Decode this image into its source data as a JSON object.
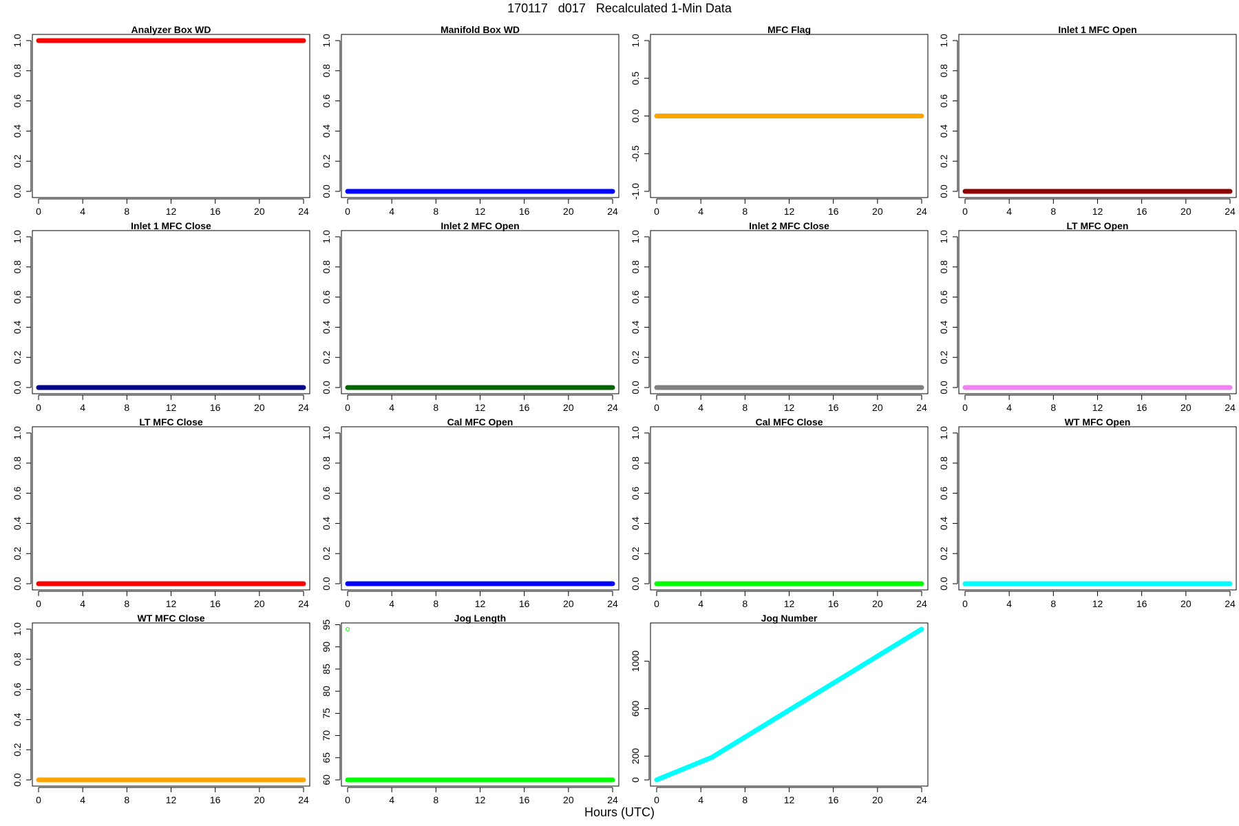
{
  "figure": {
    "title": "170117   d017   Recalculated 1-Min Data",
    "xlabel": "Hours (UTC)"
  },
  "chart_data": [
    {
      "type": "line",
      "title": "Analyzer Box WD",
      "color": "#ff0000",
      "xlim": [
        0,
        24
      ],
      "ylim": [
        0,
        1
      ],
      "x_ticks": [
        0,
        4,
        8,
        12,
        16,
        20,
        24
      ],
      "y_ticks": [
        "0.0",
        "0.2",
        "0.4",
        "0.6",
        "0.8",
        "1.0"
      ],
      "series": [
        {
          "x": [
            0,
            24
          ],
          "y": [
            1,
            1
          ]
        }
      ]
    },
    {
      "type": "line",
      "title": "Manifold Box WD",
      "color": "#0000ff",
      "xlim": [
        0,
        24
      ],
      "ylim": [
        0,
        1
      ],
      "x_ticks": [
        0,
        4,
        8,
        12,
        16,
        20,
        24
      ],
      "y_ticks": [
        "0.0",
        "0.2",
        "0.4",
        "0.6",
        "0.8",
        "1.0"
      ],
      "series": [
        {
          "x": [
            0,
            24
          ],
          "y": [
            0,
            0
          ]
        }
      ]
    },
    {
      "type": "line",
      "title": "MFC Flag",
      "color": "#ffa500",
      "xlim": [
        0,
        24
      ],
      "ylim": [
        -1,
        1
      ],
      "x_ticks": [
        0,
        4,
        8,
        12,
        16,
        20,
        24
      ],
      "y_ticks": [
        "-1.0",
        "-0.5",
        "0.0",
        "0.5",
        "1.0"
      ],
      "series": [
        {
          "x": [
            0,
            24
          ],
          "y": [
            0,
            0
          ]
        }
      ]
    },
    {
      "type": "line",
      "title": "Inlet 1 MFC Open",
      "color": "#8b0000",
      "xlim": [
        0,
        24
      ],
      "ylim": [
        0,
        1
      ],
      "x_ticks": [
        0,
        4,
        8,
        12,
        16,
        20,
        24
      ],
      "y_ticks": [
        "0.0",
        "0.2",
        "0.4",
        "0.6",
        "0.8",
        "1.0"
      ],
      "series": [
        {
          "x": [
            0,
            24
          ],
          "y": [
            0,
            0
          ]
        }
      ]
    },
    {
      "type": "line",
      "title": "Inlet 1 MFC Close",
      "color": "#00008b",
      "xlim": [
        0,
        24
      ],
      "ylim": [
        0,
        1
      ],
      "x_ticks": [
        0,
        4,
        8,
        12,
        16,
        20,
        24
      ],
      "y_ticks": [
        "0.0",
        "0.2",
        "0.4",
        "0.6",
        "0.8",
        "1.0"
      ],
      "series": [
        {
          "x": [
            0,
            24
          ],
          "y": [
            0,
            0
          ]
        }
      ]
    },
    {
      "type": "line",
      "title": "Inlet 2 MFC Open",
      "color": "#006400",
      "xlim": [
        0,
        24
      ],
      "ylim": [
        0,
        1
      ],
      "x_ticks": [
        0,
        4,
        8,
        12,
        16,
        20,
        24
      ],
      "y_ticks": [
        "0.0",
        "0.2",
        "0.4",
        "0.6",
        "0.8",
        "1.0"
      ],
      "series": [
        {
          "x": [
            0,
            24
          ],
          "y": [
            0,
            0
          ]
        }
      ]
    },
    {
      "type": "line",
      "title": "Inlet 2 MFC Close",
      "color": "#808080",
      "xlim": [
        0,
        24
      ],
      "ylim": [
        0,
        1
      ],
      "x_ticks": [
        0,
        4,
        8,
        12,
        16,
        20,
        24
      ],
      "y_ticks": [
        "0.0",
        "0.2",
        "0.4",
        "0.6",
        "0.8",
        "1.0"
      ],
      "series": [
        {
          "x": [
            0,
            24
          ],
          "y": [
            0,
            0
          ]
        }
      ]
    },
    {
      "type": "line",
      "title": "LT MFC Open",
      "color": "#ee82ee",
      "xlim": [
        0,
        24
      ],
      "ylim": [
        0,
        1
      ],
      "x_ticks": [
        0,
        4,
        8,
        12,
        16,
        20,
        24
      ],
      "y_ticks": [
        "0.0",
        "0.2",
        "0.4",
        "0.6",
        "0.8",
        "1.0"
      ],
      "series": [
        {
          "x": [
            0,
            24
          ],
          "y": [
            0,
            0
          ]
        }
      ]
    },
    {
      "type": "line",
      "title": "LT MFC Close",
      "color": "#ff0000",
      "xlim": [
        0,
        24
      ],
      "ylim": [
        0,
        1
      ],
      "x_ticks": [
        0,
        4,
        8,
        12,
        16,
        20,
        24
      ],
      "y_ticks": [
        "0.0",
        "0.2",
        "0.4",
        "0.6",
        "0.8",
        "1.0"
      ],
      "series": [
        {
          "x": [
            0,
            24
          ],
          "y": [
            0,
            0
          ]
        }
      ]
    },
    {
      "type": "line",
      "title": "Cal MFC Open",
      "color": "#0000ff",
      "xlim": [
        0,
        24
      ],
      "ylim": [
        0,
        1
      ],
      "x_ticks": [
        0,
        4,
        8,
        12,
        16,
        20,
        24
      ],
      "y_ticks": [
        "0.0",
        "0.2",
        "0.4",
        "0.6",
        "0.8",
        "1.0"
      ],
      "series": [
        {
          "x": [
            0,
            24
          ],
          "y": [
            0,
            0
          ]
        }
      ]
    },
    {
      "type": "line",
      "title": "Cal MFC Close",
      "color": "#00ff00",
      "xlim": [
        0,
        24
      ],
      "ylim": [
        0,
        1
      ],
      "x_ticks": [
        0,
        4,
        8,
        12,
        16,
        20,
        24
      ],
      "y_ticks": [
        "0.0",
        "0.2",
        "0.4",
        "0.6",
        "0.8",
        "1.0"
      ],
      "series": [
        {
          "x": [
            0,
            24
          ],
          "y": [
            0,
            0
          ]
        }
      ]
    },
    {
      "type": "line",
      "title": "WT MFC Open",
      "color": "#00ffff",
      "xlim": [
        0,
        24
      ],
      "ylim": [
        0,
        1
      ],
      "x_ticks": [
        0,
        4,
        8,
        12,
        16,
        20,
        24
      ],
      "y_ticks": [
        "0.0",
        "0.2",
        "0.4",
        "0.6",
        "0.8",
        "1.0"
      ],
      "series": [
        {
          "x": [
            0,
            24
          ],
          "y": [
            0,
            0
          ]
        }
      ]
    },
    {
      "type": "line",
      "title": "WT MFC Close",
      "color": "#ffa500",
      "xlim": [
        0,
        24
      ],
      "ylim": [
        0,
        1
      ],
      "x_ticks": [
        0,
        4,
        8,
        12,
        16,
        20,
        24
      ],
      "y_ticks": [
        "0.0",
        "0.2",
        "0.4",
        "0.6",
        "0.8",
        "1.0"
      ],
      "series": [
        {
          "x": [
            0,
            24
          ],
          "y": [
            0,
            0
          ]
        }
      ]
    },
    {
      "type": "line",
      "title": "Jog Length",
      "color": "#00ff00",
      "xlim": [
        0,
        24
      ],
      "ylim": [
        60,
        94
      ],
      "x_ticks": [
        0,
        4,
        8,
        12,
        16,
        20,
        24
      ],
      "y_ticks": [
        "60",
        "65",
        "70",
        "75",
        "80",
        "85",
        "90",
        "95"
      ],
      "series": [
        {
          "x": [
            0,
            24
          ],
          "y": [
            60,
            60
          ]
        }
      ],
      "points": [
        {
          "x": 0,
          "y": 94
        }
      ]
    },
    {
      "type": "line",
      "title": "Jog Number",
      "color": "#00ffff",
      "xlim": [
        0,
        24
      ],
      "ylim": [
        0,
        1270
      ],
      "x_ticks": [
        0,
        4,
        8,
        12,
        16,
        20,
        24
      ],
      "y_ticks": [
        "0",
        "200",
        "600",
        "1000"
      ],
      "series": [
        {
          "x": [
            0,
            5,
            24
          ],
          "y": [
            0,
            190,
            1270
          ]
        }
      ]
    }
  ]
}
